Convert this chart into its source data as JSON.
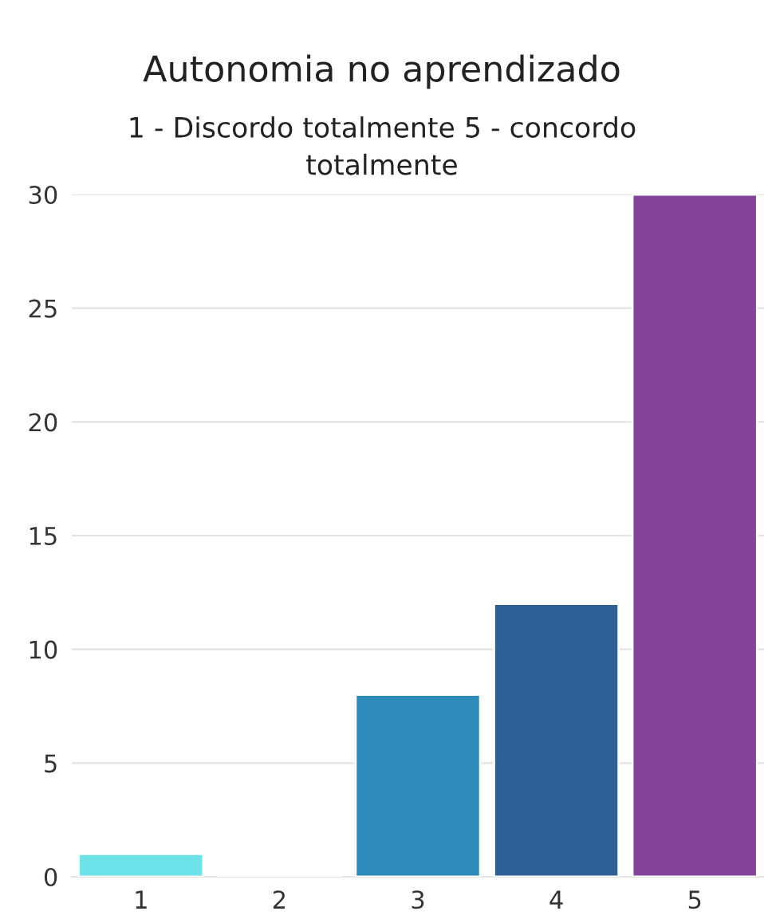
{
  "chart_data": {
    "type": "bar",
    "title": "Autonomia no aprendizado",
    "subtitle": "1 - Discordo totalmente 5 - concordo totalmente",
    "categories": [
      "1",
      "2",
      "3",
      "4",
      "5"
    ],
    "values": [
      1,
      0,
      8,
      12,
      30
    ],
    "colors": [
      "#6be3e8",
      null,
      "#2e8bb9",
      "#2e5f97",
      "#834499"
    ],
    "ylim": [
      0,
      30
    ],
    "yticks": [
      0,
      5,
      10,
      15,
      20,
      25,
      30
    ],
    "grid": "y",
    "legend": false
  }
}
